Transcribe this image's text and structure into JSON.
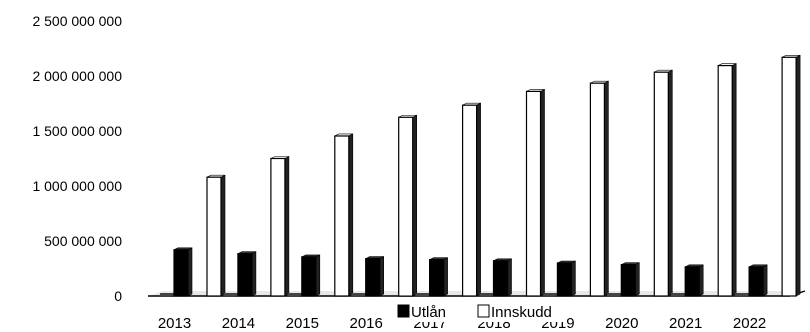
{
  "chart_data": {
    "type": "bar",
    "categories": [
      "2013",
      "2014",
      "2015",
      "2016",
      "2017",
      "2018",
      "2019",
      "2020",
      "2021",
      "2022"
    ],
    "series": [
      {
        "name": "Utlån",
        "color": "#000000",
        "values": [
          420000000,
          385000000,
          355000000,
          340000000,
          330000000,
          320000000,
          300000000,
          285000000,
          265000000,
          265000000
        ]
      },
      {
        "name": "Innskudd",
        "color": "#ffffff",
        "values": [
          1080000000,
          1250000000,
          1455000000,
          1625000000,
          1735000000,
          1860000000,
          1935000000,
          2035000000,
          2095000000,
          2170000000
        ]
      }
    ],
    "yticks": [
      "0",
      "500 000 000",
      "1 000 000 000",
      "1 500 000 000",
      "2 000 000 000",
      "2 500 000 000"
    ],
    "ylim": [
      0,
      2500000000
    ],
    "legend_position": "bottom-center",
    "grid": false
  }
}
